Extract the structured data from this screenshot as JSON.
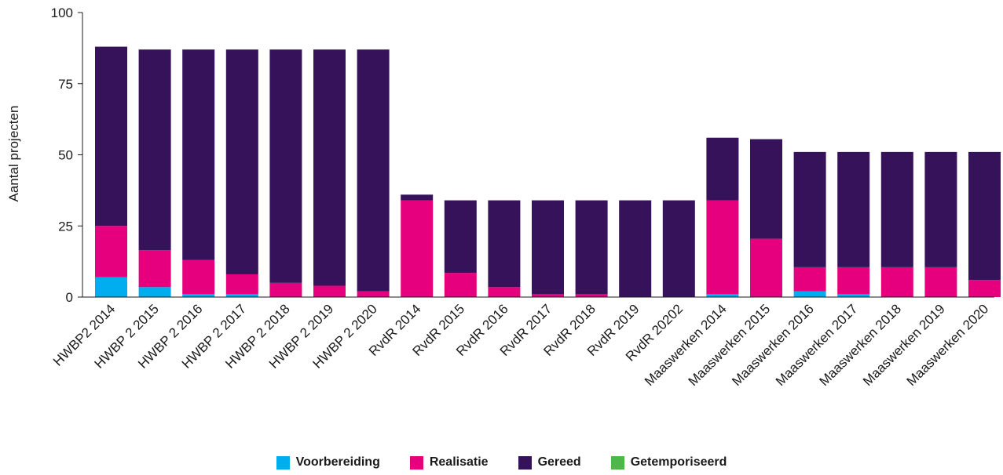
{
  "chart_data": {
    "type": "bar",
    "stacked": true,
    "ylabel": "Aantal projecten",
    "xlabel": "",
    "ylim": [
      0,
      100
    ],
    "yticks": [
      0,
      25,
      50,
      75,
      100
    ],
    "grid": false,
    "legend_position": "bottom",
    "categories": [
      "HWBP2 2014",
      "HWBP 2 2015",
      "HWBP 2 2016",
      "HWBP 2 2017",
      "HWBP 2 2018",
      "HWBP 2 2019",
      "HWBP 2 2020",
      "RvdR 2014",
      "RvdR 2015",
      "RvdR 2016",
      "RvdR 2017",
      "RvdR 2018",
      "RvdR 2019",
      "RvdR 20202",
      "Maaswerken 2014",
      "Maaswerken 2015",
      "Maaswerken 2016",
      "Maaswerken 2017",
      "Maaswerken 2018",
      "Maaswerken 2019",
      "Maaswerken 2020"
    ],
    "series": [
      {
        "name": "Voorbereiding",
        "color": "#00AEEF",
        "values": [
          7,
          3.5,
          1,
          1,
          0,
          0,
          0,
          0,
          0,
          0,
          0,
          0,
          0,
          0,
          1,
          0,
          2,
          1,
          0,
          0,
          0
        ]
      },
      {
        "name": "Realisatie",
        "color": "#E6007E",
        "values": [
          18,
          13,
          12,
          7,
          5,
          4,
          2,
          34,
          8.5,
          3.5,
          1,
          1,
          0,
          0,
          33,
          20.5,
          8.5,
          9.5,
          10.5,
          10.5,
          6
        ]
      },
      {
        "name": "Gereed",
        "color": "#35125A",
        "values": [
          63,
          70.5,
          74,
          79,
          82,
          83,
          85,
          2,
          25.5,
          30.5,
          33,
          33,
          34,
          34,
          22,
          35,
          40.5,
          40.5,
          40.5,
          40.5,
          45
        ]
      },
      {
        "name": "Getemporiseerd",
        "color": "#4DB848",
        "values": [
          0,
          0,
          0,
          0,
          0,
          0,
          0,
          0,
          0,
          0,
          0,
          0,
          0,
          0,
          0,
          0,
          0,
          0,
          0,
          0,
          0
        ]
      }
    ]
  }
}
